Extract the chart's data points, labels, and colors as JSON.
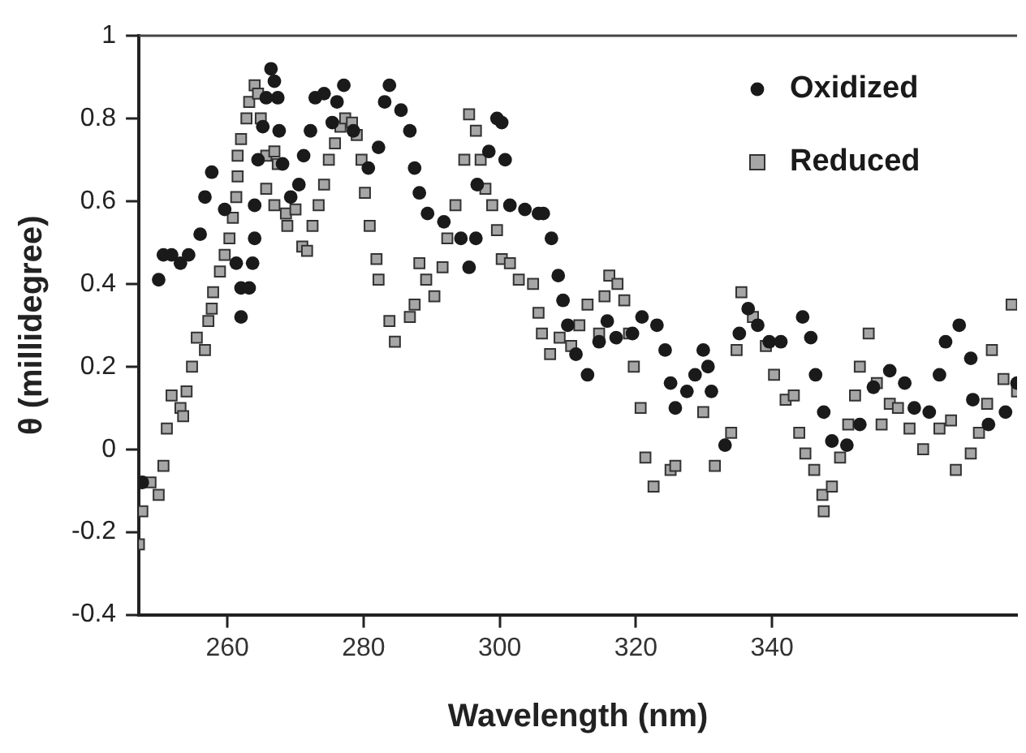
{
  "chart_data": {
    "type": "scatter",
    "xlabel": "Wavelength (nm)",
    "ylabel": "θ (millidegree)",
    "xlim": [
      247,
      376
    ],
    "xticks": [
      260,
      280,
      300,
      320,
      340
    ],
    "ylim": [
      -0.4,
      1
    ],
    "yticks": [
      -0.4,
      -0.2,
      0,
      0.2,
      0.4,
      0.6,
      0.8,
      1
    ],
    "grid": false,
    "legend": "top right",
    "series": [
      {
        "name": "Oxidized",
        "color": "#1a1a1a",
        "marker": "circle",
        "x": [
          247.5,
          249.9,
          250.6,
          251.8,
          253.1,
          254.3,
          256.0,
          256.7,
          257.7,
          259.6,
          261.3,
          262.0,
          262.0,
          263.2,
          263.7,
          264.0,
          264.0,
          264.5,
          265.2,
          265.7,
          266.4,
          266.9,
          267.4,
          267.6,
          268.1,
          269.3,
          270.5,
          271.2,
          272.2,
          272.9,
          274.2,
          275.4,
          276.1,
          277.1,
          278.5,
          280.7,
          282.2,
          283.1,
          283.8,
          285.5,
          286.8,
          287.5,
          288.2,
          289.4,
          291.8,
          294.3,
          295.5,
          296.5,
          296.7,
          298.4,
          299.6,
          300.3,
          300.8,
          301.5,
          303.7,
          305.7,
          306.4,
          307.6,
          308.6,
          309.3,
          310.0,
          311.2,
          312.9,
          314.6,
          315.8,
          317.1,
          319.5,
          320.9,
          323.1,
          324.3,
          325.1,
          325.8,
          327.5,
          328.7,
          329.9,
          330.6,
          331.1,
          333.1,
          335.2,
          336.5,
          337.9,
          339.6,
          341.3,
          344.5,
          345.7,
          346.4,
          347.6,
          348.8,
          351.0,
          352.9,
          354.9,
          357.3,
          359.5,
          360.9,
          363.1,
          364.6,
          365.5,
          367.5,
          369.2,
          369.5,
          371.8,
          374.3,
          376
        ],
        "values": [
          -0.08,
          0.41,
          0.47,
          0.47,
          0.45,
          0.47,
          0.52,
          0.61,
          0.67,
          0.58,
          0.45,
          0.39,
          0.32,
          0.39,
          0.45,
          0.51,
          0.59,
          0.7,
          0.78,
          0.85,
          0.92,
          0.89,
          0.85,
          0.77,
          0.69,
          0.61,
          0.64,
          0.71,
          0.77,
          0.85,
          0.86,
          0.79,
          0.84,
          0.88,
          0.77,
          0.68,
          0.73,
          0.84,
          0.88,
          0.82,
          0.77,
          0.68,
          0.62,
          0.57,
          0.55,
          0.51,
          0.44,
          0.51,
          0.64,
          0.72,
          0.8,
          0.79,
          0.7,
          0.59,
          0.58,
          0.57,
          0.57,
          0.51,
          0.42,
          0.36,
          0.3,
          0.23,
          0.18,
          0.26,
          0.31,
          0.27,
          0.28,
          0.32,
          0.3,
          0.24,
          0.16,
          0.1,
          0.14,
          0.18,
          0.24,
          0.2,
          0.14,
          0.01,
          0.28,
          0.34,
          0.3,
          0.26,
          0.26,
          0.32,
          0.27,
          0.18,
          0.09,
          0.02,
          0.01,
          0.06,
          0.15,
          0.19,
          0.16,
          0.1,
          0.09,
          0.18,
          0.26,
          0.3,
          0.22,
          0.12,
          0.06,
          0.09,
          0.16
        ]
      },
      {
        "name": "Reduced",
        "color": "#a6a6a6",
        "marker": "square",
        "x": [
          247.0,
          247.5,
          248.7,
          249.9,
          250.6,
          251.1,
          251.8,
          253.1,
          253.5,
          254.0,
          254.8,
          255.5,
          256.7,
          257.2,
          257.7,
          257.9,
          258.9,
          259.6,
          260.3,
          260.8,
          261.3,
          261.5,
          261.5,
          262.0,
          262.8,
          263.2,
          264.0,
          264.5,
          264.9,
          265.7,
          265.7,
          266.9,
          266.9,
          267.4,
          268.6,
          268.8,
          270.0,
          271.0,
          271.7,
          272.5,
          273.4,
          274.2,
          274.9,
          275.8,
          276.6,
          277.3,
          278.3,
          279.0,
          279.7,
          280.2,
          280.9,
          281.9,
          282.2,
          283.8,
          284.6,
          286.8,
          287.5,
          288.2,
          289.2,
          290.4,
          291.6,
          292.3,
          293.5,
          294.8,
          295.5,
          296.5,
          297.2,
          297.9,
          298.9,
          299.6,
          300.3,
          301.5,
          302.8,
          304.9,
          305.7,
          306.2,
          307.4,
          308.8,
          310.5,
          311.7,
          312.9,
          314.6,
          315.4,
          316.1,
          317.3,
          318.3,
          319.0,
          319.7,
          320.7,
          321.4,
          322.6,
          325.1,
          325.8,
          329.9,
          331.6,
          334.0,
          334.8,
          335.5,
          337.2,
          339.1,
          340.3,
          342.0,
          343.2,
          344.0,
          344.9,
          346.2,
          347.4,
          347.6,
          348.8,
          350.0,
          351.2,
          352.2,
          352.9,
          354.2,
          355.4,
          356.1,
          357.3,
          358.5,
          360.2,
          362.2,
          364.6,
          366.3,
          367.0,
          369.2,
          370.4,
          371.6,
          372.3,
          374.0,
          375.2,
          376.0
        ],
        "values": [
          -0.23,
          -0.15,
          -0.08,
          -0.11,
          -0.04,
          0.05,
          0.13,
          0.1,
          0.08,
          0.14,
          0.2,
          0.27,
          0.24,
          0.31,
          0.34,
          0.38,
          0.43,
          0.47,
          0.51,
          0.56,
          0.61,
          0.66,
          0.71,
          0.75,
          0.8,
          0.84,
          0.88,
          0.86,
          0.8,
          0.71,
          0.63,
          0.59,
          0.72,
          0.69,
          0.57,
          0.54,
          0.58,
          0.49,
          0.48,
          0.54,
          0.59,
          0.64,
          0.7,
          0.74,
          0.78,
          0.8,
          0.79,
          0.76,
          0.7,
          0.62,
          0.54,
          0.46,
          0.41,
          0.31,
          0.26,
          0.32,
          0.35,
          0.45,
          0.41,
          0.37,
          0.44,
          0.51,
          0.59,
          0.7,
          0.81,
          0.77,
          0.7,
          0.63,
          0.59,
          0.53,
          0.46,
          0.45,
          0.41,
          0.4,
          0.33,
          0.28,
          0.23,
          0.27,
          0.25,
          0.3,
          0.35,
          0.28,
          0.37,
          0.42,
          0.4,
          0.36,
          0.28,
          0.2,
          0.1,
          -0.02,
          -0.09,
          -0.05,
          -0.04,
          0.09,
          -0.04,
          0.04,
          0.24,
          0.38,
          0.32,
          0.25,
          0.18,
          0.12,
          0.13,
          0.04,
          -0.01,
          -0.05,
          -0.11,
          -0.15,
          -0.09,
          -0.02,
          0.06,
          0.13,
          0.2,
          0.28,
          0.16,
          0.06,
          0.11,
          0.1,
          0.05,
          0.0,
          0.05,
          0.07,
          -0.05,
          -0.01,
          0.04,
          0.11,
          0.24,
          0.17,
          0.35,
          0.14
        ]
      }
    ]
  }
}
